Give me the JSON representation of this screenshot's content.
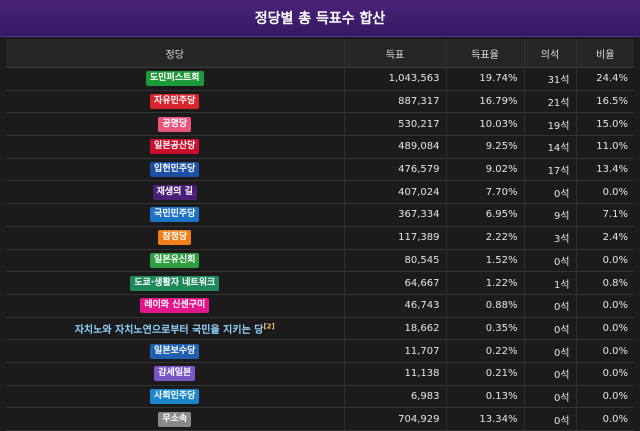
{
  "header": {
    "title": "정당별 총 득표수 합산"
  },
  "columns": [
    "정당",
    "득표",
    "득표율",
    "의석",
    "비율"
  ],
  "rows": [
    {
      "party": "도민퍼스트회",
      "votes": "1,043,563",
      "rate": "19.74%",
      "seats": "31석",
      "ratio": "24.4%",
      "color": "#1f9a3a"
    },
    {
      "party": "자유민주당",
      "votes": "887,317",
      "rate": "16.79%",
      "seats": "21석",
      "ratio": "16.5%",
      "color": "#d7252e"
    },
    {
      "party": "공명당",
      "votes": "530,217",
      "rate": "10.03%",
      "seats": "19석",
      "ratio": "15.0%",
      "color": "#e9547b"
    },
    {
      "party": "일본공산당",
      "votes": "489,084",
      "rate": "9.25%",
      "seats": "14석",
      "ratio": "11.0%",
      "color": "#c8102e"
    },
    {
      "party": "입헌민주당",
      "votes": "476,579",
      "rate": "9.02%",
      "seats": "17석",
      "ratio": "13.4%",
      "color": "#1a4fa3"
    },
    {
      "party": "재생의 길",
      "votes": "407,024",
      "rate": "7.70%",
      "seats": "0석",
      "ratio": "0.0%",
      "color": "#4b1f78"
    },
    {
      "party": "국민민주당",
      "votes": "367,334",
      "rate": "6.95%",
      "seats": "9석",
      "ratio": "7.1%",
      "color": "#1d72c4"
    },
    {
      "party": "참정당",
      "votes": "117,389",
      "rate": "2.22%",
      "seats": "3석",
      "ratio": "2.4%",
      "color": "#ef7d1a"
    },
    {
      "party": "일본유신회",
      "votes": "80,545",
      "rate": "1.52%",
      "seats": "0석",
      "ratio": "0.0%",
      "color": "#2f9e3f"
    },
    {
      "party": "도쿄·생활자 네트워크",
      "votes": "64,667",
      "rate": "1.22%",
      "seats": "1석",
      "ratio": "0.8%",
      "color": "#1e8a5a"
    },
    {
      "party": "레이와 신센구미",
      "votes": "46,743",
      "rate": "0.88%",
      "seats": "0석",
      "ratio": "0.0%",
      "color": "#e2158a"
    },
    {
      "party": "자치노와 자치노연으로부터 국민을 지키는 당",
      "sup": "[2]",
      "votes": "18,662",
      "rate": "0.35%",
      "seats": "0석",
      "ratio": "0.0%",
      "plain": true
    },
    {
      "party": "일본보수당",
      "votes": "11,707",
      "rate": "0.22%",
      "seats": "0석",
      "ratio": "0.0%",
      "color": "#1e5fb0"
    },
    {
      "party": "감세일본",
      "votes": "11,138",
      "rate": "0.21%",
      "seats": "0석",
      "ratio": "0.0%",
      "color": "#7a56c4"
    },
    {
      "party": "사회민주당",
      "votes": "6,983",
      "rate": "0.13%",
      "seats": "0석",
      "ratio": "0.0%",
      "color": "#1b86c9"
    },
    {
      "party": "무소속",
      "votes": "704,929",
      "rate": "13.34%",
      "seats": "0석",
      "ratio": "0.0%",
      "color": "#8a8a8a"
    }
  ]
}
